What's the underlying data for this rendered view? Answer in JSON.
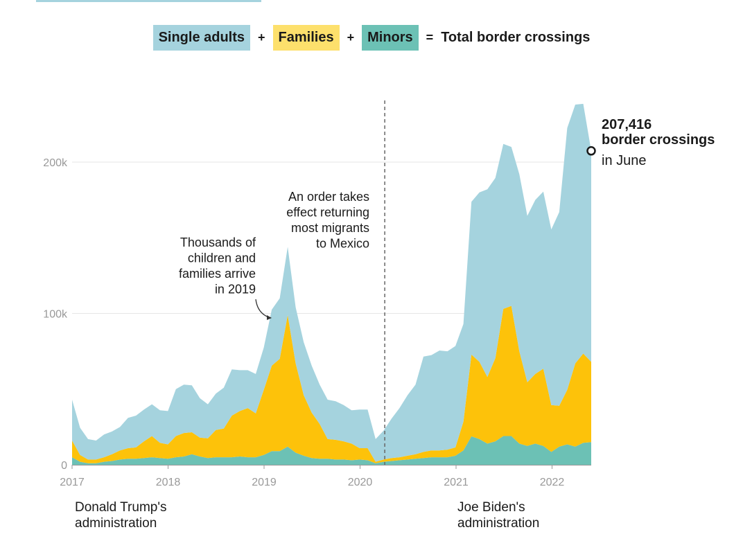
{
  "legend": {
    "single": "Single adults",
    "families": "Families",
    "minors": "Minors",
    "plus1": "+",
    "plus2": "+",
    "equals": "=",
    "total": "Total border crossings"
  },
  "colors": {
    "single": "#a5d3de",
    "families": "#fdc20a",
    "minors": "#6cc1b5",
    "grid": "#e6e6e6",
    "axis": "#999999",
    "text": "#1a1a1a"
  },
  "annotations": {
    "families_2019": [
      "Thousands of",
      "children and",
      "families arrive",
      "in 2019"
    ],
    "order_mexico": [
      "An order takes",
      "effect returning",
      "most migrants",
      "to Mexico"
    ],
    "june_value": "207,416",
    "june_label": "border crossings",
    "june_month": "in June",
    "trump": [
      "Donald Trump's",
      "administration"
    ],
    "biden": [
      "Joe Biden's",
      "administration"
    ]
  },
  "chart_data": {
    "type": "area",
    "stacked": true,
    "title": "Single adults + Families + Minors = Total border crossings",
    "xlabel": "",
    "ylabel": "",
    "ylim": [
      0,
      240000
    ],
    "yticks": [
      0,
      100000,
      200000
    ],
    "ytick_labels": [
      "0",
      "100k",
      "200k"
    ],
    "xticks": [
      2017,
      2018,
      2019,
      2020,
      2021,
      2022
    ],
    "xtick_labels": [
      "2017",
      "2018",
      "2019",
      "2020",
      "2021",
      "2022"
    ],
    "x_start": "2017-01",
    "x_end": "2022-06",
    "event_line_x": 2020.25,
    "highlight_point": {
      "x": 2022.42,
      "y": 207416
    },
    "series": [
      {
        "name": "Minors",
        "key": "minors",
        "values": [
          5000,
          2000,
          1000,
          1000,
          2000,
          2500,
          3500,
          4000,
          4000,
          4500,
          5000,
          4500,
          4000,
          5000,
          5500,
          7000,
          5500,
          4500,
          5000,
          5000,
          5000,
          5500,
          5000,
          5000,
          6500,
          9000,
          9000,
          12000,
          8000,
          6000,
          4500,
          4000,
          4000,
          3500,
          3500,
          3000,
          3500,
          3000,
          1000,
          2000,
          2500,
          3000,
          3500,
          4000,
          4500,
          5000,
          5000,
          5000,
          6000,
          9500,
          18800,
          17000,
          14000,
          15500,
          19000,
          19000,
          14000,
          12500,
          14000,
          12500,
          8500,
          12000,
          13500,
          12000,
          14500,
          15000
        ]
      },
      {
        "name": "Families",
        "key": "families",
        "values": [
          11000,
          4500,
          2500,
          2500,
          3000,
          4500,
          6000,
          7000,
          7500,
          11000,
          14000,
          10000,
          9500,
          14000,
          15500,
          14500,
          12500,
          13000,
          18000,
          19000,
          27500,
          30000,
          32500,
          29000,
          43000,
          56500,
          61000,
          87000,
          59000,
          40000,
          30000,
          23000,
          13000,
          13000,
          12000,
          11000,
          7500,
          8000,
          1000,
          1500,
          2000,
          2000,
          2500,
          3000,
          4000,
          4500,
          4500,
          5000,
          5500,
          19000,
          54000,
          51000,
          44000,
          55000,
          84000,
          86000,
          61000,
          42000,
          46000,
          51000,
          31000,
          27000,
          36000,
          55000,
          59000,
          53000
        ]
      },
      {
        "name": "Single adults",
        "key": "single",
        "values": [
          27000,
          18000,
          13500,
          12500,
          15000,
          15000,
          15500,
          20000,
          21000,
          21000,
          21000,
          21500,
          22000,
          31000,
          32000,
          31000,
          26000,
          22500,
          24000,
          27000,
          30500,
          27000,
          25000,
          26000,
          28000,
          37000,
          40000,
          45000,
          37000,
          35000,
          31000,
          26000,
          26000,
          25500,
          24000,
          22000,
          25500,
          25500,
          15000,
          19000,
          26000,
          32500,
          40000,
          46000,
          63000,
          63000,
          66000,
          65000,
          67000,
          64500,
          101000,
          112000,
          124000,
          119000,
          109000,
          105000,
          117000,
          110000,
          115000,
          117000,
          116000,
          128000,
          173000,
          171000,
          165000,
          139416
        ]
      }
    ]
  }
}
